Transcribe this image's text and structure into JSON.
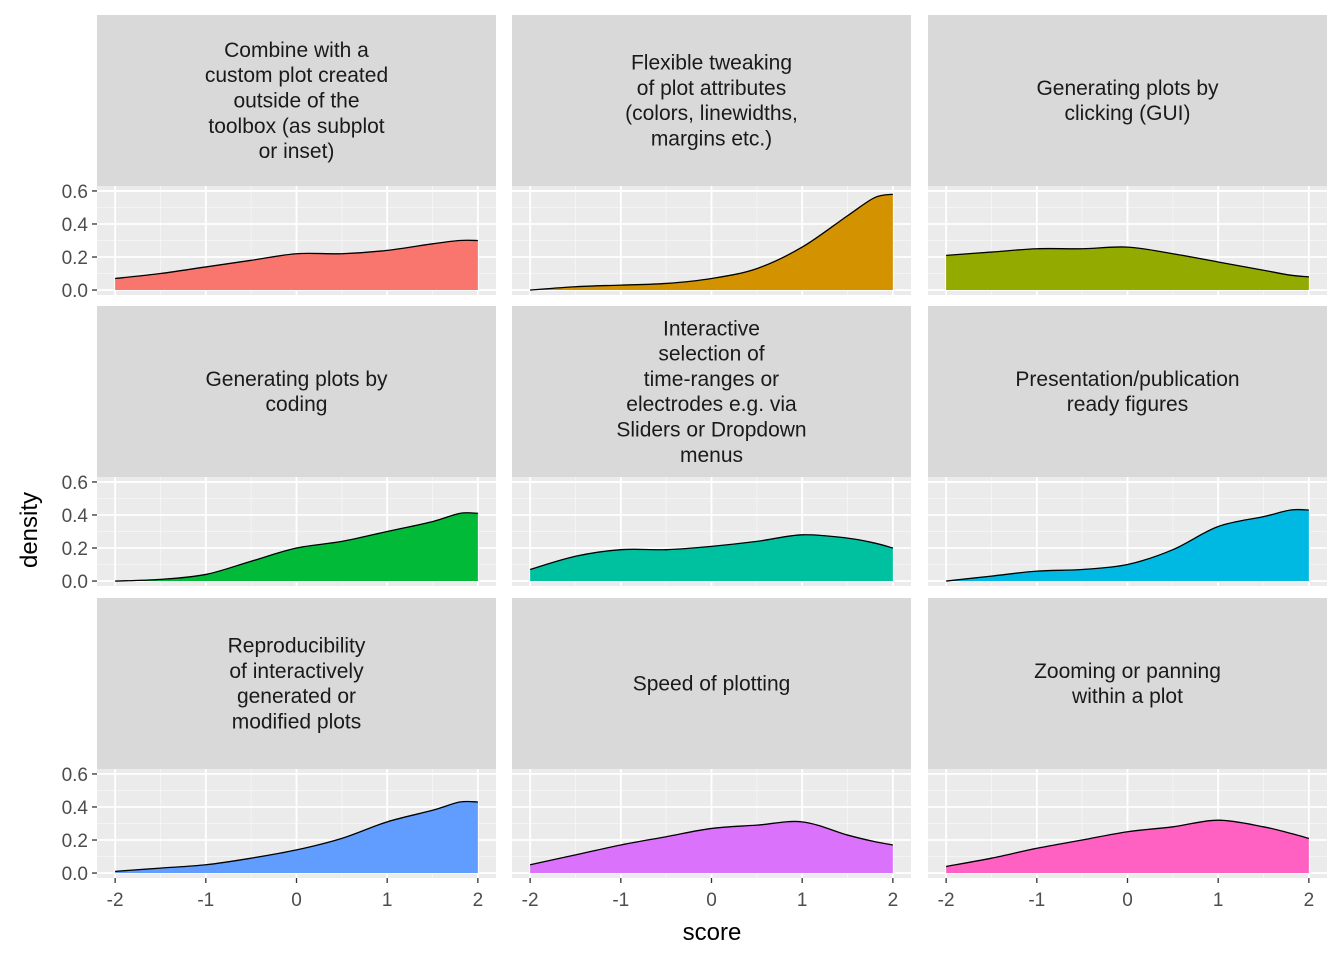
{
  "chart_data": {
    "type": "area",
    "subtype": "faceted density",
    "xlabel": "score",
    "ylabel": "density",
    "xlim": [
      -2,
      2
    ],
    "ylim": [
      0,
      0.6
    ],
    "xticks": [
      -2,
      -1,
      0,
      1,
      2
    ],
    "xtick_labels": [
      "-2",
      "-1",
      "0",
      "1",
      "2"
    ],
    "yticks": [
      0,
      0.2,
      0.4,
      0.6
    ],
    "ytick_labels": [
      "0.0",
      "0.2",
      "0.4",
      "0.6"
    ],
    "grid": true,
    "facet_layout": "3x3",
    "x": [
      -2,
      -1.5,
      -1,
      -0.5,
      0,
      0.5,
      1,
      1.5,
      1.8,
      2
    ],
    "panels": [
      {
        "title": [
          "Combine with a",
          "custom plot created",
          "outside of the",
          "toolbox (as subplot",
          "or inset)"
        ],
        "color": "#F8766D",
        "values": [
          0.07,
          0.1,
          0.14,
          0.18,
          0.22,
          0.22,
          0.24,
          0.28,
          0.3,
          0.3
        ]
      },
      {
        "title": [
          "Flexible tweaking",
          "of plot attributes",
          "(colors, linewidths,",
          "margins etc.)"
        ],
        "color": "#D39200",
        "values": [
          0.0,
          0.02,
          0.03,
          0.04,
          0.07,
          0.13,
          0.26,
          0.45,
          0.56,
          0.58
        ]
      },
      {
        "title": [
          "Generating plots by",
          "clicking (GUI)"
        ],
        "color": "#93AA00",
        "values": [
          0.21,
          0.23,
          0.25,
          0.25,
          0.26,
          0.22,
          0.17,
          0.12,
          0.09,
          0.08
        ]
      },
      {
        "title": [
          "Generating plots by",
          "coding"
        ],
        "color": "#00BA38",
        "values": [
          0.0,
          0.01,
          0.04,
          0.12,
          0.2,
          0.24,
          0.3,
          0.36,
          0.41,
          0.41
        ]
      },
      {
        "title": [
          "Interactive",
          "selection of",
          "time-ranges or",
          "electrodes e.g. via",
          "Sliders or Dropdown",
          "menus"
        ],
        "color": "#00C19F",
        "values": [
          0.07,
          0.15,
          0.19,
          0.19,
          0.21,
          0.24,
          0.28,
          0.26,
          0.23,
          0.2
        ]
      },
      {
        "title": [
          "Presentation/publication",
          "ready figures"
        ],
        "color": "#00B9E3",
        "values": [
          0.0,
          0.03,
          0.06,
          0.07,
          0.1,
          0.19,
          0.33,
          0.39,
          0.43,
          0.43
        ]
      },
      {
        "title": [
          "Reproducibility",
          "of interactively",
          "generated or",
          "modified plots"
        ],
        "color": "#619CFF",
        "values": [
          0.01,
          0.03,
          0.05,
          0.09,
          0.14,
          0.21,
          0.31,
          0.38,
          0.43,
          0.43
        ]
      },
      {
        "title": [
          "Speed of plotting"
        ],
        "color": "#DB72FB",
        "values": [
          0.05,
          0.11,
          0.17,
          0.22,
          0.27,
          0.29,
          0.31,
          0.23,
          0.19,
          0.17
        ]
      },
      {
        "title": [
          "Zooming or panning",
          "within a plot"
        ],
        "color": "#FF61C3",
        "values": [
          0.04,
          0.09,
          0.15,
          0.2,
          0.25,
          0.28,
          0.32,
          0.28,
          0.24,
          0.21
        ]
      }
    ]
  }
}
